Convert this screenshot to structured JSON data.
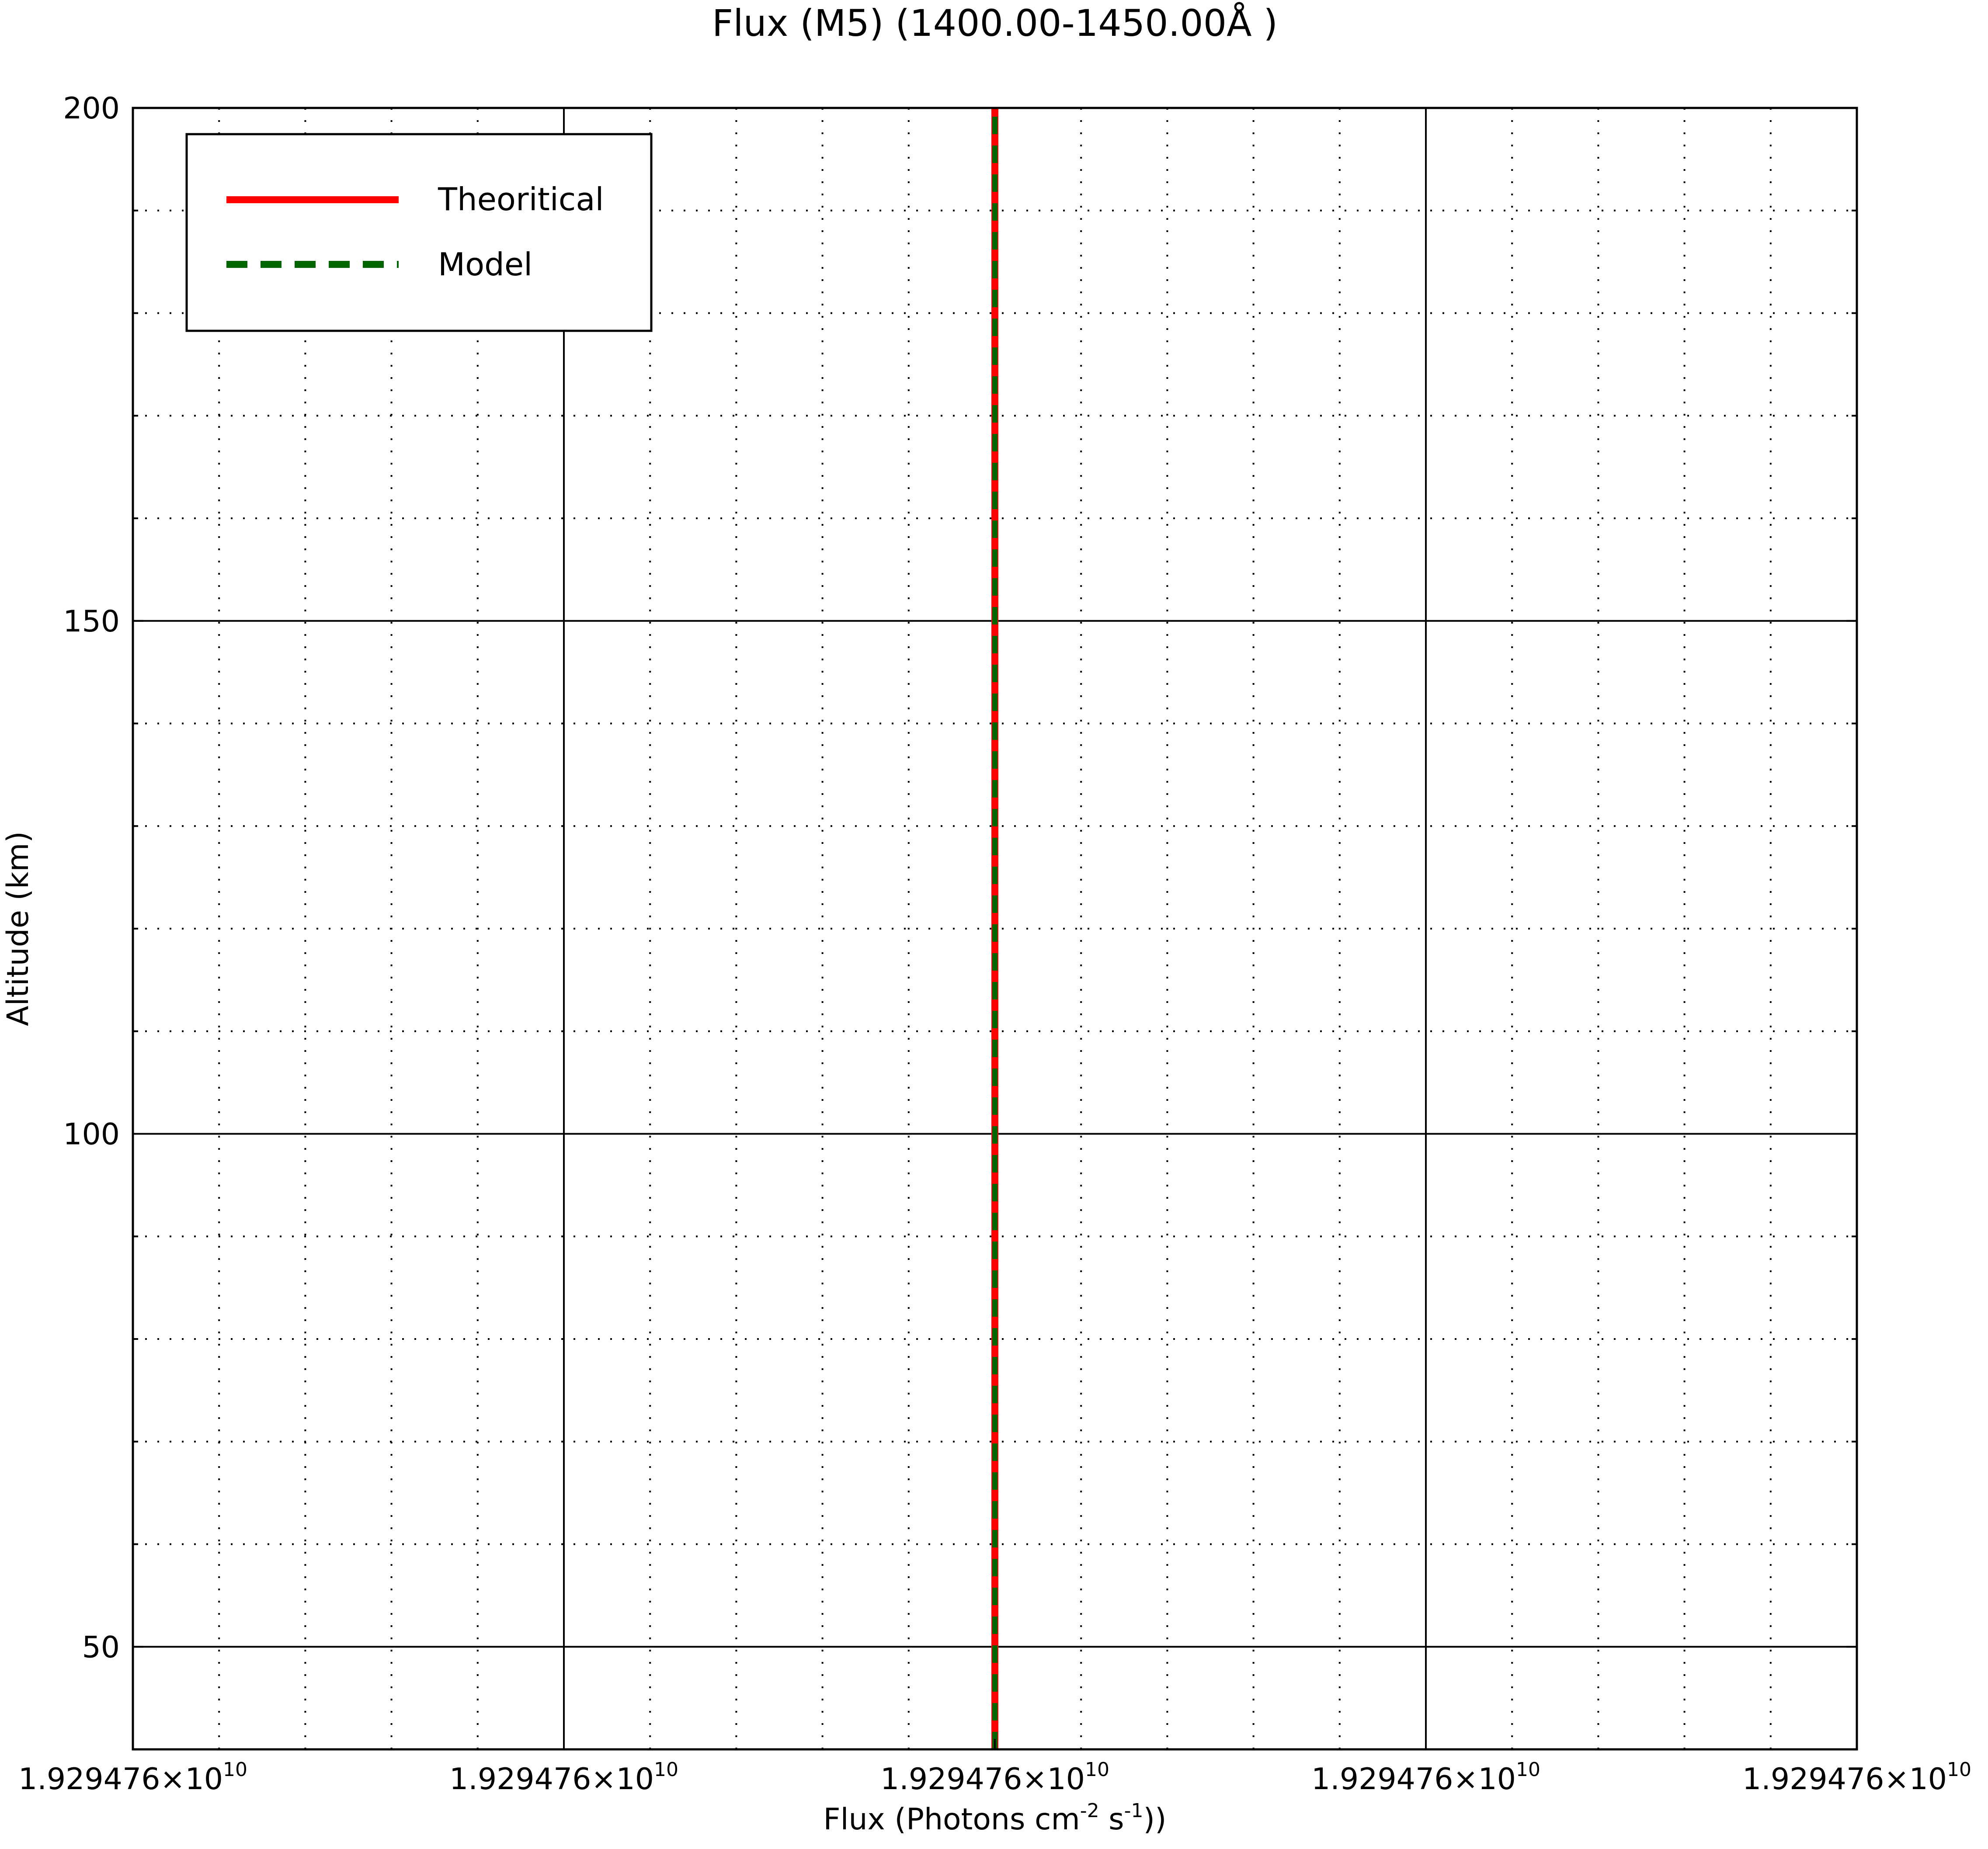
{
  "chart_data": {
    "type": "line",
    "title": "Flux (M5) (1400.00-1450.00Å )",
    "xlabel": {
      "base": "Flux (Photons cm",
      "sup1": "-2",
      "mid": " s",
      "sup2": "-1",
      "end": "))"
    },
    "ylabel": "Altitude (km)",
    "x_tick_labels": [
      {
        "mantissa": "1.929476×10",
        "exponent": "10"
      },
      {
        "mantissa": "1.929476×10",
        "exponent": "10"
      },
      {
        "mantissa": "1.929476×10",
        "exponent": "10"
      },
      {
        "mantissa": "1.929476×10",
        "exponent": "10"
      },
      {
        "mantissa": "1.929476×10",
        "exponent": "10"
      }
    ],
    "ylim": [
      40,
      200
    ],
    "y_major_ticks": [
      50,
      100,
      150,
      200
    ],
    "y_tick_labels": [
      "50",
      "100",
      "150",
      "200"
    ],
    "y_minor_step": 10,
    "x_minor_per_major": 5,
    "grid": true,
    "legend_position": "top-left",
    "series": [
      {
        "name": "Theoritical",
        "color": "#ff0000",
        "style": "solid",
        "x": [
          19294760000.0,
          19294760000.0
        ],
        "y": [
          40,
          200
        ]
      },
      {
        "name": "Model",
        "color": "#006400",
        "style": "dashed",
        "x": [
          19294760000.0,
          19294760000.0
        ],
        "y": [
          40,
          200
        ]
      }
    ]
  }
}
